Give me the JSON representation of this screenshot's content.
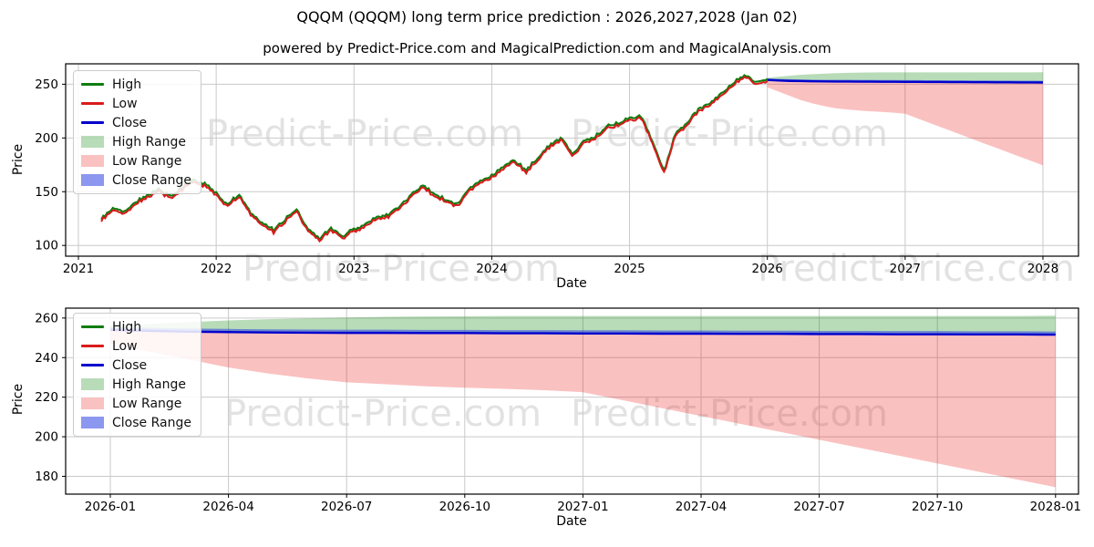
{
  "title": "QQQM (QQQM) long term price prediction : 2026,2027,2028 (Jan 02)",
  "subtitle": "powered by Predict-Price.com and MagicalPrediction.com and MagicalAnalysis.com",
  "watermark": "Predict-Price.com",
  "ticker": "QQQM",
  "prediction_years": "2026,2027,2028",
  "prediction_date": "Jan 02",
  "colors": {
    "high_line": "#0f7d0f",
    "low_line": "#da1b1b",
    "close_line": "#0000cc",
    "high_range_fill": "rgba(0,128,0,0.28)",
    "low_range_fill": "rgba(235,25,25,0.27)",
    "close_range_fill": "rgba(45,65,225,0.55)",
    "grid": "#c9c9c9",
    "axis": "#000000",
    "watermark": "#cccccc"
  },
  "legend": [
    {
      "label": "High",
      "swatch": "line",
      "color_key": "high_line"
    },
    {
      "label": "Low",
      "swatch": "line",
      "color_key": "low_line"
    },
    {
      "label": "Close",
      "swatch": "line",
      "color_key": "close_line"
    },
    {
      "label": "High Range",
      "swatch": "patch",
      "color_key": "high_range_fill"
    },
    {
      "label": "Low Range",
      "swatch": "patch",
      "color_key": "low_range_fill"
    },
    {
      "label": "Close Range",
      "swatch": "patch",
      "color_key": "close_range_fill"
    }
  ],
  "chart_data": [
    {
      "type": "line",
      "name": "long-term-history-and-prediction",
      "xlabel": "Date",
      "ylabel": "Price",
      "x_ticks": [
        "2021",
        "2022",
        "2023",
        "2024",
        "2025",
        "2026",
        "2027",
        "2028"
      ],
      "y_ticks": [
        100,
        150,
        200,
        250
      ],
      "ylim": [
        90,
        269
      ],
      "grid": true,
      "legend_position": "upper left",
      "historical": {
        "start_month": "2021-03",
        "interval": "monthly",
        "series_note": "approx monthly close; High/Low tightly track Close",
        "values": [
          124,
          134,
          131,
          140,
          146,
          151,
          145,
          153,
          161,
          157,
          148,
          137,
          147,
          130,
          120,
          113,
          124,
          133,
          114,
          106,
          115,
          108,
          114,
          119,
          125,
          128,
          136,
          147,
          155,
          147,
          142,
          137,
          152,
          160,
          164,
          172,
          179,
          169,
          181,
          192,
          200,
          184,
          196,
          200,
          210,
          213,
          217,
          220,
          196,
          168,
          203,
          213,
          226,
          232,
          240,
          250,
          259,
          251,
          254
        ]
      },
      "prediction": {
        "start_month": "2026-01",
        "interval": "monthly",
        "close": [
          254.0,
          253.5,
          253.1,
          252.9,
          252.7,
          252.6,
          252.5,
          252.5,
          252.4,
          252.4,
          252.3,
          252.3,
          252.2,
          252.2,
          252.1,
          252.1,
          252.0,
          252.0,
          251.9,
          251.9,
          251.8,
          251.8,
          251.7,
          251.7,
          251.6
        ],
        "close_upper": [
          255.4,
          255.0,
          254.7,
          254.5,
          254.3,
          254.2,
          254.1,
          254.1,
          254.0,
          254.0,
          253.9,
          253.9,
          253.8,
          253.8,
          253.7,
          253.7,
          253.6,
          253.6,
          253.5,
          253.5,
          253.4,
          253.4,
          253.3,
          253.3,
          253.2
        ],
        "high_upper": [
          256.0,
          257.0,
          258.0,
          258.8,
          259.4,
          259.9,
          260.3,
          260.6,
          260.8,
          260.9,
          261.0,
          261.0,
          261.0,
          261.0,
          261.0,
          261.0,
          261.0,
          261.0,
          261.0,
          261.0,
          261.0,
          261.0,
          261.0,
          261.0,
          261.2
        ],
        "low_lower": [
          247.0,
          243.0,
          239.0,
          235.0,
          232.0,
          229.5,
          227.5,
          226.5,
          225.5,
          224.8,
          224.2,
          223.5,
          222.5,
          218.5,
          214.5,
          210.5,
          206.5,
          202.5,
          198.5,
          194.5,
          190.5,
          186.5,
          182.5,
          178.5,
          174.5
        ]
      }
    },
    {
      "type": "area-line",
      "name": "prediction-detail",
      "xlabel": "Date",
      "ylabel": "Price",
      "x_ticks": [
        "2026-01",
        "2026-04",
        "2026-07",
        "2026-10",
        "2027-01",
        "2027-04",
        "2027-07",
        "2027-10",
        "2028-01"
      ],
      "y_ticks": [
        180,
        200,
        220,
        240,
        260
      ],
      "ylim": [
        171,
        265
      ],
      "grid": true,
      "legend_position": "upper left",
      "prediction": {
        "start_month": "2026-01",
        "interval": "monthly",
        "close": [
          254.0,
          253.5,
          253.1,
          252.9,
          252.7,
          252.6,
          252.5,
          252.5,
          252.4,
          252.4,
          252.3,
          252.3,
          252.2,
          252.2,
          252.1,
          252.1,
          252.0,
          252.0,
          251.9,
          251.9,
          251.8,
          251.8,
          251.7,
          251.7,
          251.6
        ],
        "close_upper": [
          255.4,
          255.0,
          254.7,
          254.5,
          254.3,
          254.2,
          254.1,
          254.1,
          254.0,
          254.0,
          253.9,
          253.9,
          253.8,
          253.8,
          253.7,
          253.7,
          253.6,
          253.6,
          253.5,
          253.5,
          253.4,
          253.4,
          253.3,
          253.3,
          253.2
        ],
        "high_upper": [
          256.0,
          257.0,
          258.0,
          258.8,
          259.4,
          259.9,
          260.3,
          260.6,
          260.8,
          260.9,
          261.0,
          261.0,
          261.0,
          261.0,
          261.0,
          261.0,
          261.0,
          261.0,
          261.0,
          261.0,
          261.0,
          261.0,
          261.0,
          261.0,
          261.2
        ],
        "low_lower": [
          247.0,
          243.0,
          239.0,
          235.0,
          232.0,
          229.5,
          227.5,
          226.5,
          225.5,
          224.8,
          224.2,
          223.5,
          222.5,
          218.5,
          214.5,
          210.5,
          206.5,
          202.5,
          198.5,
          194.5,
          190.5,
          186.5,
          182.5,
          178.5,
          174.5
        ]
      }
    }
  ]
}
